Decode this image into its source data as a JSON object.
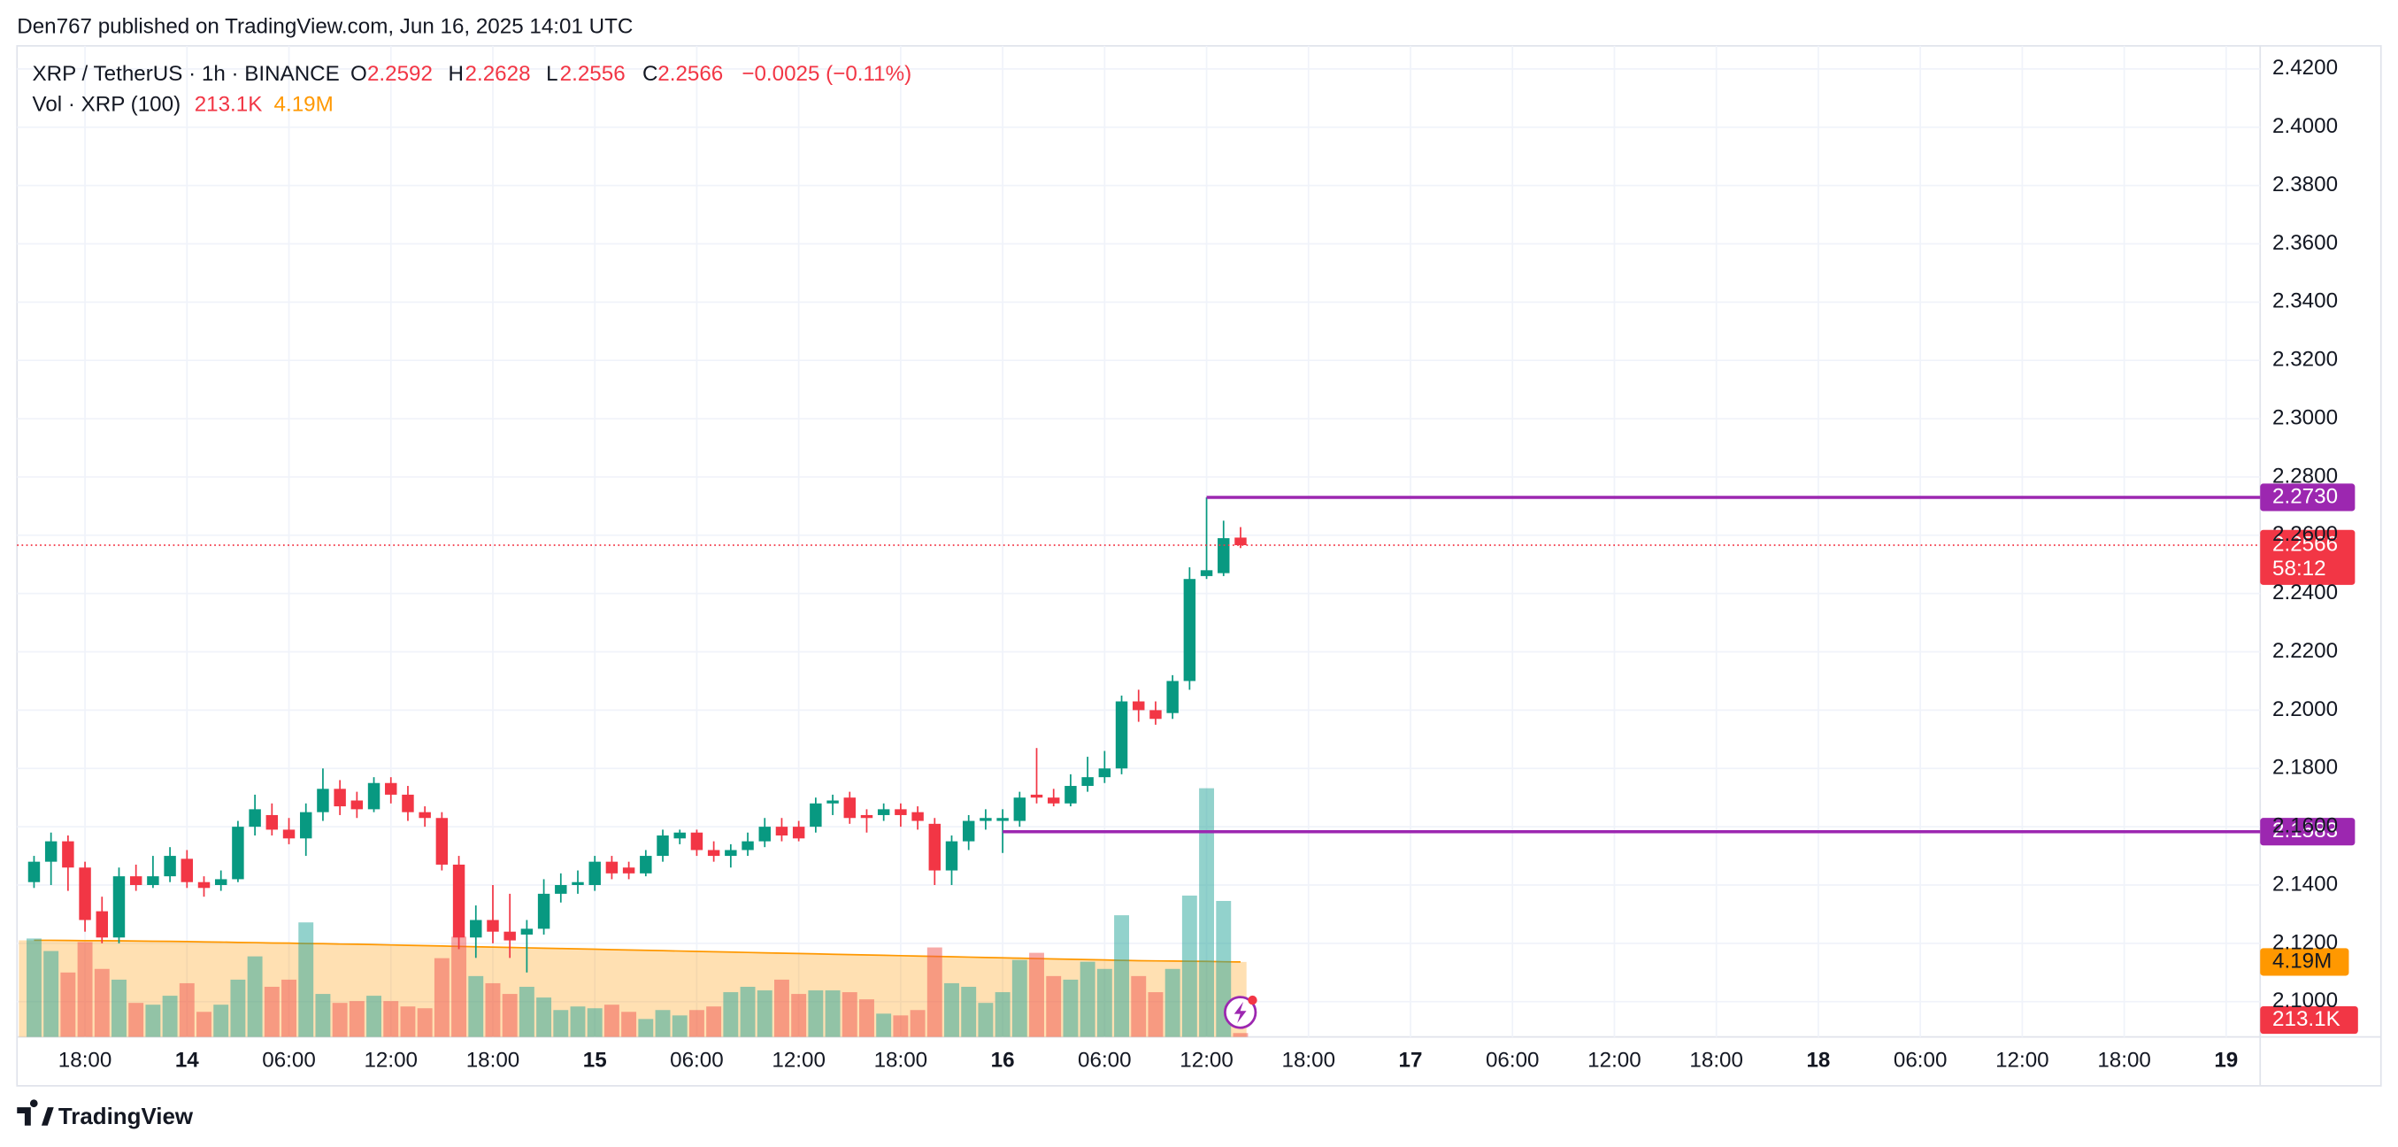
{
  "header": {
    "publisher": "Den767 published on TradingView.com, Jun 16, 2025 14:01 UTC",
    "brand": "TradingView"
  },
  "chart_data": {
    "type": "candlestick",
    "legend": {
      "title": "XRP / TetherUS · 1h · BINANCE",
      "letters": [
        "O",
        "H",
        "L",
        "C"
      ],
      "change": "−0.0025 (−0.11%)",
      "vol_title": "Vol · XRP (100)"
    },
    "volume_label": "213.1K",
    "volume_ma_label": "4.19M",
    "countdown": "58:12",
    "up_color": "#089981",
    "down_color": "#f23645",
    "volume_up_color": "rgba(38,166,154,0.5)",
    "volume_down_color": "rgba(239,83,80,0.5)",
    "volume_ma_color": "#ff9800",
    "hline_color": "#9c27b0",
    "grid": true,
    "xlim": [
      14,
      146
    ],
    "xticks": [
      {
        "value": 18,
        "label": "18:00"
      },
      {
        "value": 24,
        "label": "14"
      },
      {
        "value": 30,
        "label": "06:00"
      },
      {
        "value": 36,
        "label": "12:00"
      },
      {
        "value": 42,
        "label": "18:00"
      },
      {
        "value": 48,
        "label": "15"
      },
      {
        "value": 54,
        "label": "06:00"
      },
      {
        "value": 60,
        "label": "12:00"
      },
      {
        "value": 66,
        "label": "18:00"
      },
      {
        "value": 72,
        "label": "16"
      },
      {
        "value": 78,
        "label": "06:00"
      },
      {
        "value": 84,
        "label": "12:00"
      },
      {
        "value": 90,
        "label": "18:00"
      },
      {
        "value": 96,
        "label": "17"
      },
      {
        "value": 102,
        "label": "06:00"
      },
      {
        "value": 108,
        "label": "12:00"
      },
      {
        "value": 114,
        "label": "18:00"
      },
      {
        "value": 120,
        "label": "18"
      },
      {
        "value": 126,
        "label": "06:00"
      },
      {
        "value": 132,
        "label": "12:00"
      },
      {
        "value": 138,
        "label": "18:00"
      },
      {
        "value": 144,
        "label": "19"
      }
    ],
    "ylim": [
      2.0879,
      2.4279
    ],
    "yticks": [
      {
        "value": 2.1,
        "label": "2.1000"
      },
      {
        "value": 2.12,
        "label": "2.1200"
      },
      {
        "value": 2.14,
        "label": "2.1400"
      },
      {
        "value": 2.16,
        "label": "2.1600"
      },
      {
        "value": 2.18,
        "label": "2.1800"
      },
      {
        "value": 2.2,
        "label": "2.2000"
      },
      {
        "value": 2.22,
        "label": "2.2200"
      },
      {
        "value": 2.24,
        "label": "2.2400"
      },
      {
        "value": 2.26,
        "label": "2.2600"
      },
      {
        "value": 2.28,
        "label": "2.2800"
      },
      {
        "value": 2.3,
        "label": "2.3000"
      },
      {
        "value": 2.32,
        "label": "2.3200"
      },
      {
        "value": 2.34,
        "label": "2.3400"
      },
      {
        "value": 2.36,
        "label": "2.3600"
      },
      {
        "value": 2.38,
        "label": "2.3800"
      },
      {
        "value": 2.4,
        "label": "2.4000"
      },
      {
        "value": 2.42,
        "label": "2.4200"
      }
    ],
    "volume_ylim": [
      0,
      55.4
    ],
    "hlines": [
      {
        "value": 2.273,
        "label": "2.2730",
        "from": 84
      },
      {
        "value": 2.1583,
        "label": "2.1583",
        "from": 72
      }
    ],
    "x": [
      15,
      16,
      17,
      18,
      19,
      20,
      21,
      22,
      23,
      24,
      25,
      26,
      27,
      28,
      29,
      30,
      31,
      32,
      33,
      34,
      35,
      36,
      37,
      38,
      39,
      40,
      41,
      42,
      43,
      44,
      45,
      46,
      47,
      48,
      49,
      50,
      51,
      52,
      53,
      54,
      55,
      56,
      57,
      58,
      59,
      60,
      61,
      62,
      63,
      64,
      65,
      66,
      67,
      68,
      69,
      70,
      71,
      72,
      73,
      74,
      75,
      76,
      77,
      78,
      79,
      80,
      81,
      82,
      83,
      84,
      85,
      86
    ],
    "open": [
      2.141,
      2.148,
      2.155,
      2.146,
      2.131,
      2.122,
      2.143,
      2.14,
      2.143,
      2.149,
      2.141,
      2.14,
      2.142,
      2.16,
      2.164,
      2.159,
      2.156,
      2.165,
      2.173,
      2.169,
      2.166,
      2.175,
      2.171,
      2.165,
      2.163,
      2.147,
      2.122,
      2.128,
      2.124,
      2.123,
      2.125,
      2.137,
      2.14,
      2.14,
      2.148,
      2.146,
      2.144,
      2.15,
      2.156,
      2.158,
      2.152,
      2.15,
      2.152,
      2.155,
      2.16,
      2.16,
      2.16,
      2.168,
      2.17,
      2.164,
      2.164,
      2.166,
      2.165,
      2.161,
      2.145,
      2.155,
      2.162,
      2.162,
      2.162,
      2.171,
      2.17,
      2.168,
      2.174,
      2.177,
      2.18,
      2.203,
      2.2,
      2.199,
      2.21,
      2.246,
      2.247,
      2.2592
    ],
    "high": [
      2.15,
      2.158,
      2.157,
      2.148,
      2.136,
      2.146,
      2.147,
      2.15,
      2.153,
      2.152,
      2.143,
      2.145,
      2.162,
      2.171,
      2.168,
      2.163,
      2.168,
      2.18,
      2.176,
      2.172,
      2.177,
      2.177,
      2.174,
      2.167,
      2.165,
      2.15,
      2.133,
      2.14,
      2.137,
      2.128,
      2.142,
      2.144,
      2.145,
      2.15,
      2.15,
      2.148,
      2.152,
      2.159,
      2.159,
      2.159,
      2.155,
      2.154,
      2.158,
      2.163,
      2.163,
      2.162,
      2.17,
      2.171,
      2.172,
      2.166,
      2.168,
      2.168,
      2.167,
      2.163,
      2.157,
      2.164,
      2.166,
      2.166,
      2.172,
      2.187,
      2.173,
      2.178,
      2.184,
      2.186,
      2.205,
      2.207,
      2.203,
      2.212,
      2.249,
      2.273,
      2.265,
      2.2628
    ],
    "low": [
      2.139,
      2.14,
      2.138,
      2.124,
      2.12,
      2.12,
      2.138,
      2.139,
      2.141,
      2.139,
      2.136,
      2.138,
      2.141,
      2.157,
      2.157,
      2.154,
      2.15,
      2.162,
      2.164,
      2.163,
      2.165,
      2.168,
      2.162,
      2.16,
      2.145,
      2.118,
      2.115,
      2.12,
      2.115,
      2.11,
      2.123,
      2.134,
      2.137,
      2.138,
      2.142,
      2.142,
      2.143,
      2.148,
      2.154,
      2.15,
      2.148,
      2.146,
      2.15,
      2.153,
      2.155,
      2.155,
      2.158,
      2.164,
      2.161,
      2.158,
      2.162,
      2.16,
      2.159,
      2.14,
      2.14,
      2.152,
      2.159,
      2.151,
      2.16,
      2.168,
      2.167,
      2.167,
      2.172,
      2.175,
      2.178,
      2.196,
      2.195,
      2.197,
      2.207,
      2.245,
      2.246,
      2.2556
    ],
    "close": [
      2.148,
      2.155,
      2.146,
      2.128,
      2.122,
      2.143,
      2.14,
      2.143,
      2.15,
      2.141,
      2.139,
      2.142,
      2.16,
      2.166,
      2.159,
      2.156,
      2.165,
      2.173,
      2.167,
      2.166,
      2.175,
      2.171,
      2.165,
      2.163,
      2.147,
      2.122,
      2.128,
      2.124,
      2.121,
      2.125,
      2.137,
      2.14,
      2.141,
      2.148,
      2.144,
      2.144,
      2.15,
      2.157,
      2.158,
      2.152,
      2.15,
      2.152,
      2.155,
      2.16,
      2.157,
      2.156,
      2.168,
      2.169,
      2.163,
      2.163,
      2.166,
      2.164,
      2.162,
      2.145,
      2.155,
      2.162,
      2.163,
      2.163,
      2.17,
      2.17,
      2.168,
      2.174,
      2.177,
      2.18,
      2.203,
      2.2,
      2.197,
      2.21,
      2.245,
      2.248,
      2.259,
      2.2566
    ],
    "volume": [
      5.5,
      4.8,
      3.6,
      5.3,
      3.8,
      3.2,
      1.9,
      1.8,
      2.3,
      3.0,
      1.4,
      1.8,
      3.2,
      4.5,
      2.8,
      3.2,
      6.4,
      2.4,
      1.9,
      2.0,
      2.3,
      2.0,
      1.7,
      1.6,
      4.4,
      5.6,
      3.4,
      3.0,
      2.4,
      2.8,
      2.2,
      1.5,
      1.7,
      1.6,
      1.8,
      1.4,
      1.0,
      1.5,
      1.2,
      1.5,
      1.7,
      2.5,
      2.8,
      2.6,
      3.2,
      2.4,
      2.6,
      2.6,
      2.5,
      2.1,
      1.3,
      1.2,
      1.5,
      5.0,
      3.0,
      2.8,
      1.9,
      2.5,
      4.3,
      4.7,
      3.4,
      3.2,
      4.2,
      3.8,
      6.8,
      3.4,
      2.5,
      3.8,
      7.9,
      13.9,
      7.6,
      0.2131
    ],
    "volume_ma": [
      5.4,
      5.4,
      5.39,
      5.38,
      5.38,
      5.37,
      5.36,
      5.35,
      5.34,
      5.33,
      5.31,
      5.3,
      5.28,
      5.27,
      5.25,
      5.24,
      5.22,
      5.21,
      5.19,
      5.18,
      5.16,
      5.14,
      5.12,
      5.1,
      5.08,
      5.06,
      5.04,
      5.02,
      5.0,
      4.98,
      4.96,
      4.94,
      4.92,
      4.9,
      4.88,
      4.86,
      4.84,
      4.82,
      4.8,
      4.78,
      4.76,
      4.74,
      4.72,
      4.7,
      4.68,
      4.66,
      4.64,
      4.62,
      4.6,
      4.58,
      4.56,
      4.54,
      4.52,
      4.5,
      4.48,
      4.46,
      4.44,
      4.42,
      4.4,
      4.38,
      4.36,
      4.34,
      4.32,
      4.3,
      4.28,
      4.26,
      4.25,
      4.24,
      4.23,
      4.22,
      4.2,
      4.19
    ]
  }
}
